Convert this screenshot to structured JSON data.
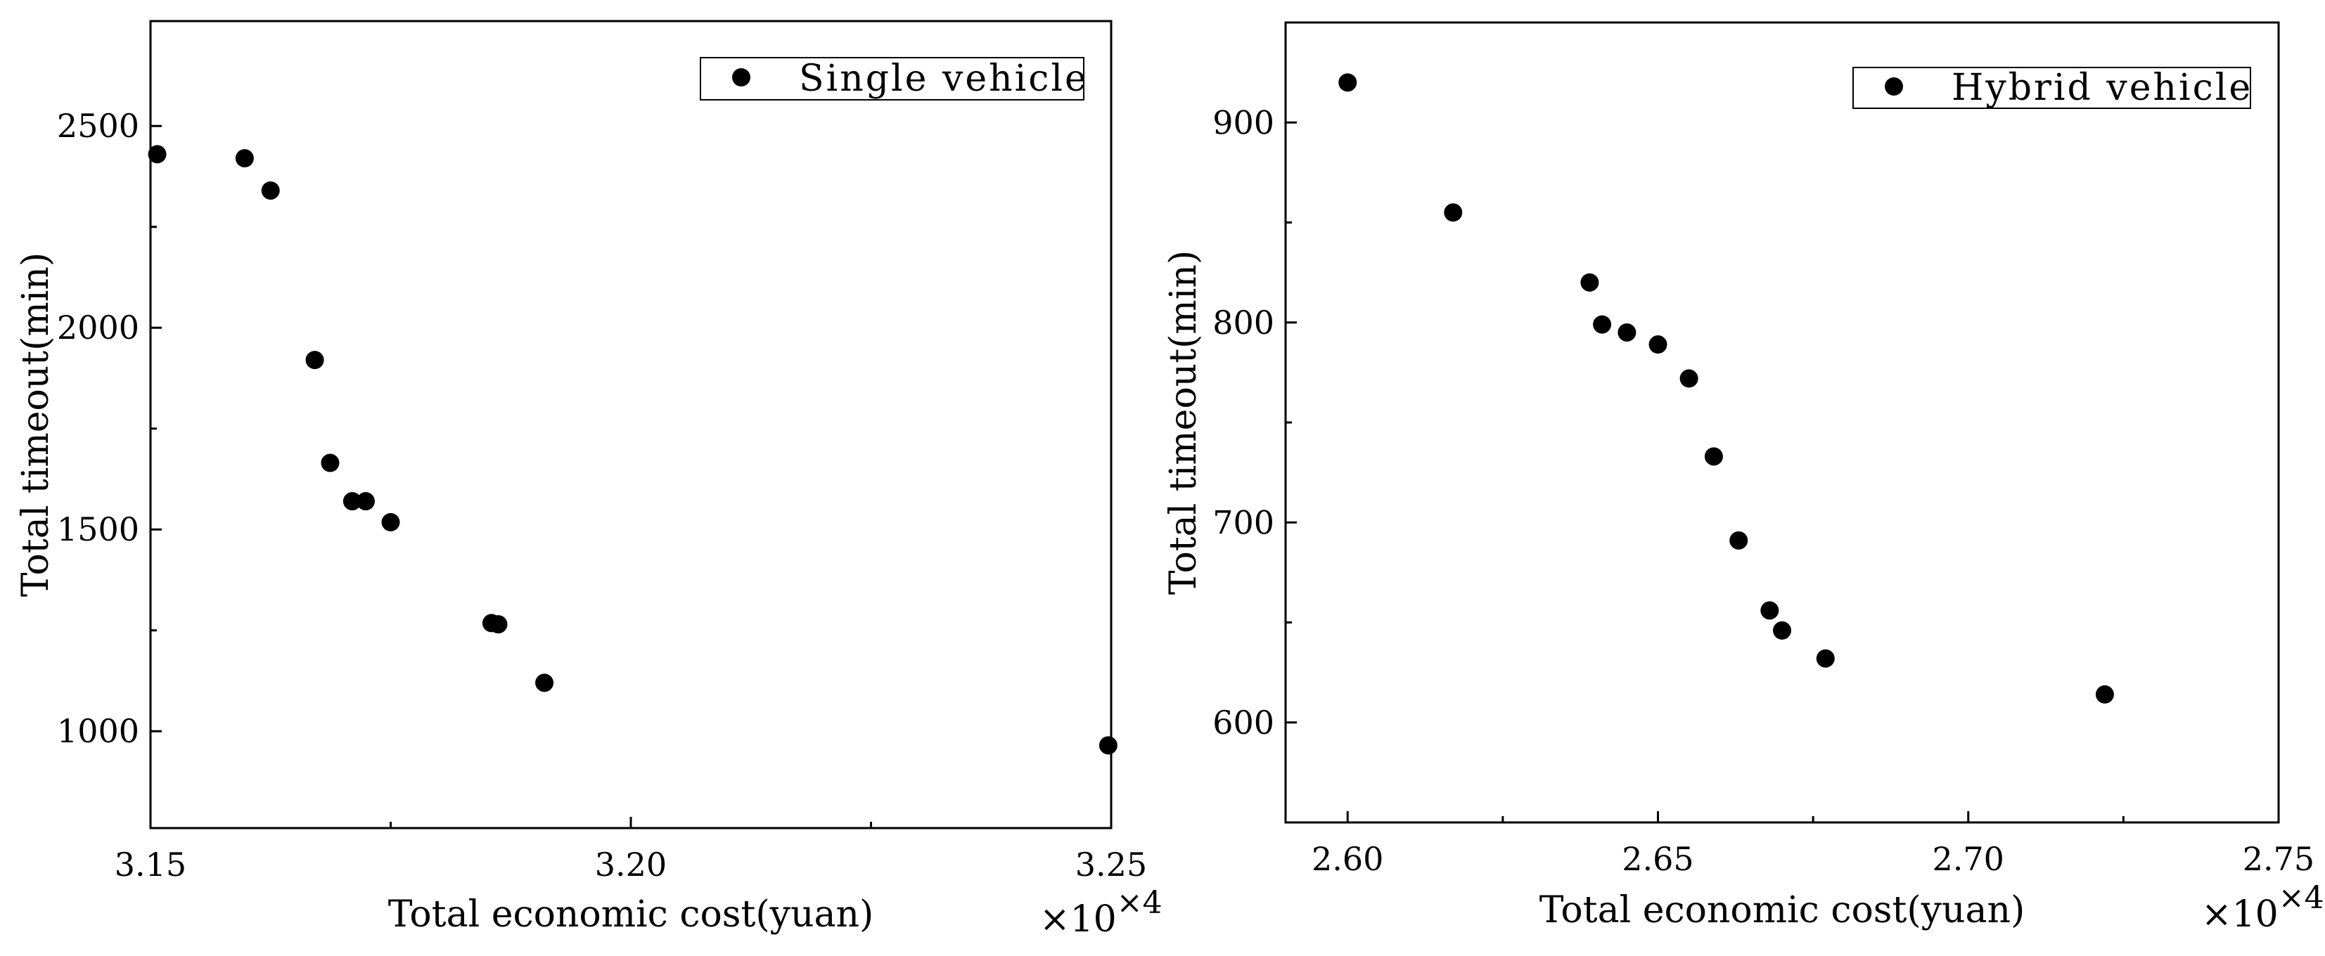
{
  "chart_data": [
    {
      "type": "scatter",
      "xlabel": "Total economic cost(yuan)",
      "ylabel": "Total timeout(min)",
      "x_multiplier_prefix": "×10",
      "x_multiplier_exponent": "×4",
      "xlim": [
        3.15,
        3.25
      ],
      "ylim": [
        760,
        2760
      ],
      "x_ticks": [
        3.15,
        3.2,
        3.25
      ],
      "x_tick_labels": [
        "3.15",
        "3.20",
        "3.25"
      ],
      "x_minor_ticks": [
        3.175,
        3.225
      ],
      "y_ticks": [
        1000,
        1500,
        2000,
        2500
      ],
      "y_tick_labels": [
        "1000",
        "1500",
        "2000",
        "2500"
      ],
      "y_minor_ticks": [
        1250,
        1750,
        2250
      ],
      "legend_position": "top-right",
      "grid": false,
      "series": [
        {
          "name": "Single vehicle",
          "color": "#000000",
          "x": [
            3.1507,
            3.1598,
            3.1625,
            3.1671,
            3.1687,
            3.171,
            3.1724,
            3.175,
            3.1855,
            3.1862,
            3.191,
            3.2497
          ],
          "y": [
            2430,
            2420,
            2340,
            1920,
            1665,
            1570,
            1570,
            1518,
            1268,
            1265,
            1120,
            965
          ]
        }
      ]
    },
    {
      "type": "scatter",
      "xlabel": "Total economic cost(yuan)",
      "ylabel": "Total timeout(min)",
      "x_multiplier_prefix": "×10",
      "x_multiplier_exponent": "×4",
      "xlim": [
        2.59,
        2.75
      ],
      "ylim": [
        550,
        950
      ],
      "x_ticks": [
        2.6,
        2.65,
        2.7,
        2.75
      ],
      "x_tick_labels": [
        "2.60",
        "2.65",
        "2.70",
        "2.75"
      ],
      "x_minor_ticks": [
        2.625,
        2.675,
        2.725
      ],
      "y_ticks": [
        600,
        700,
        800,
        900
      ],
      "y_tick_labels": [
        "600",
        "700",
        "800",
        "900"
      ],
      "y_minor_ticks": [
        650,
        750,
        850
      ],
      "legend_position": "top-right",
      "grid": false,
      "series": [
        {
          "name": "Hybrid vehicle",
          "color": "#000000",
          "x": [
            2.6,
            2.617,
            2.639,
            2.641,
            2.645,
            2.65,
            2.655,
            2.659,
            2.663,
            2.668,
            2.67,
            2.677,
            2.722
          ],
          "y": [
            920,
            855,
            820,
            799,
            795,
            789,
            772,
            733,
            691,
            656,
            646,
            632,
            614
          ]
        }
      ]
    }
  ]
}
